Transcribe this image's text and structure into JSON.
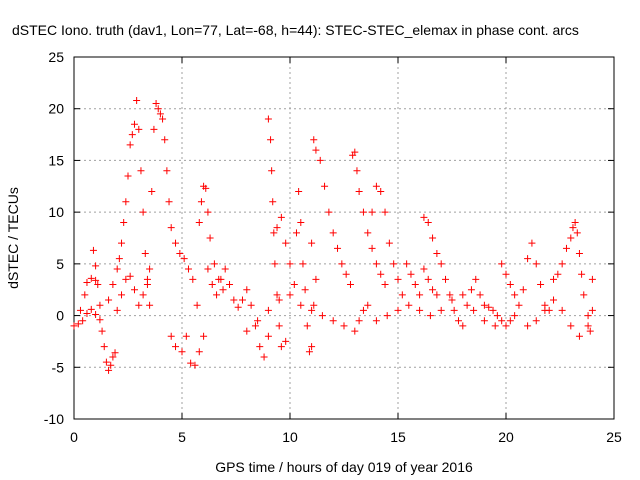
{
  "chart_data": {
    "type": "scatter",
    "title": "dSTEC Iono. truth (dav1, Lon=77, Lat=-68, h=44): STEC-STEC_elemax in phase cont. arcs",
    "xlabel": "GPS time / hours of day 019 of year 2016",
    "ylabel": "dSTEC  / TECUs",
    "xlim": [
      0,
      25
    ],
    "ylim": [
      -10,
      25
    ],
    "xticks": [
      0,
      5,
      10,
      15,
      20,
      25
    ],
    "yticks": [
      -10,
      -5,
      0,
      5,
      10,
      15,
      20,
      25
    ],
    "grid": true,
    "marker": "+",
    "series_color": "#ff0000",
    "series": [
      {
        "values": [
          [
            0.0,
            -1.0
          ],
          [
            0.2,
            -0.8
          ],
          [
            0.4,
            -0.5
          ],
          [
            0.6,
            0.2
          ],
          [
            0.8,
            0.6
          ],
          [
            1.0,
            0.1
          ],
          [
            1.2,
            -0.4
          ],
          [
            0.3,
            0.5
          ],
          [
            0.5,
            2.0
          ],
          [
            0.6,
            3.2
          ],
          [
            0.8,
            3.6
          ],
          [
            1.0,
            3.4
          ],
          [
            0.9,
            6.3
          ],
          [
            1.0,
            4.8
          ],
          [
            1.1,
            3.0
          ],
          [
            1.2,
            1.0
          ],
          [
            1.3,
            -1.5
          ],
          [
            1.4,
            -3.0
          ],
          [
            1.5,
            -4.5
          ],
          [
            1.6,
            -5.3
          ],
          [
            1.7,
            -4.8
          ],
          [
            1.8,
            -4.0
          ],
          [
            1.9,
            -3.6
          ],
          [
            1.6,
            1.5
          ],
          [
            1.8,
            3.0
          ],
          [
            2.0,
            4.5
          ],
          [
            2.1,
            5.5
          ],
          [
            2.2,
            7.0
          ],
          [
            2.3,
            9.0
          ],
          [
            2.4,
            11.0
          ],
          [
            2.5,
            13.5
          ],
          [
            2.6,
            16.5
          ],
          [
            2.7,
            17.5
          ],
          [
            2.8,
            18.5
          ],
          [
            2.9,
            20.8
          ],
          [
            3.0,
            18.0
          ],
          [
            3.1,
            14.0
          ],
          [
            3.2,
            10.0
          ],
          [
            3.3,
            6.0
          ],
          [
            3.4,
            3.0
          ],
          [
            3.5,
            1.0
          ],
          [
            2.0,
            0.5
          ],
          [
            2.2,
            2.0
          ],
          [
            2.4,
            3.5
          ],
          [
            2.6,
            3.8
          ],
          [
            2.8,
            2.5
          ],
          [
            3.0,
            1.0
          ],
          [
            3.2,
            2.0
          ],
          [
            3.4,
            3.5
          ],
          [
            3.5,
            4.5
          ],
          [
            3.6,
            12.0
          ],
          [
            3.7,
            18.0
          ],
          [
            3.8,
            20.5
          ],
          [
            3.9,
            20.0
          ],
          [
            4.0,
            19.5
          ],
          [
            4.1,
            19.0
          ],
          [
            4.2,
            17.0
          ],
          [
            4.3,
            14.0
          ],
          [
            4.4,
            11.0
          ],
          [
            4.5,
            8.5
          ],
          [
            4.7,
            7.0
          ],
          [
            4.9,
            6.0
          ],
          [
            5.1,
            5.5
          ],
          [
            5.3,
            4.5
          ],
          [
            5.5,
            3.5
          ],
          [
            5.7,
            1.0
          ],
          [
            4.5,
            -2.0
          ],
          [
            4.7,
            -3.0
          ],
          [
            5.0,
            -3.5
          ],
          [
            5.2,
            -2.0
          ],
          [
            5.4,
            -4.6
          ],
          [
            5.6,
            -4.8
          ],
          [
            5.8,
            -3.5
          ],
          [
            6.0,
            -2.0
          ],
          [
            5.8,
            9.0
          ],
          [
            5.9,
            11.0
          ],
          [
            6.0,
            12.5
          ],
          [
            6.1,
            12.3
          ],
          [
            6.2,
            10.0
          ],
          [
            6.3,
            7.5
          ],
          [
            6.5,
            5.0
          ],
          [
            6.7,
            3.5
          ],
          [
            6.9,
            2.5
          ],
          [
            6.2,
            4.5
          ],
          [
            6.4,
            3.0
          ],
          [
            6.6,
            2.0
          ],
          [
            6.8,
            3.5
          ],
          [
            7.0,
            4.5
          ],
          [
            7.2,
            3.0
          ],
          [
            7.4,
            1.5
          ],
          [
            7.6,
            0.8
          ],
          [
            7.8,
            1.5
          ],
          [
            8.0,
            2.5
          ],
          [
            8.2,
            1.0
          ],
          [
            8.4,
            -1.0
          ],
          [
            8.6,
            -3.0
          ],
          [
            8.8,
            -4.0
          ],
          [
            9.0,
            -2.0
          ],
          [
            9.0,
            19.0
          ],
          [
            9.1,
            17.0
          ],
          [
            9.15,
            14.0
          ],
          [
            9.2,
            11.0
          ],
          [
            9.25,
            8.0
          ],
          [
            9.3,
            5.0
          ],
          [
            9.4,
            2.0
          ],
          [
            9.5,
            -1.0
          ],
          [
            9.6,
            -3.0
          ],
          [
            9.8,
            -2.5
          ],
          [
            9.4,
            8.5
          ],
          [
            9.6,
            9.5
          ],
          [
            9.8,
            7.0
          ],
          [
            10.0,
            5.0
          ],
          [
            10.2,
            3.0
          ],
          [
            10.3,
            8.0
          ],
          [
            10.4,
            12.0
          ],
          [
            10.5,
            9.0
          ],
          [
            10.6,
            5.0
          ],
          [
            10.7,
            2.5
          ],
          [
            10.8,
            -1.0
          ],
          [
            10.9,
            -3.5
          ],
          [
            11.0,
            -3.0
          ],
          [
            11.1,
            1.0
          ],
          [
            11.2,
            3.5
          ],
          [
            11.0,
            7.0
          ],
          [
            11.1,
            17.0
          ],
          [
            11.2,
            16.0
          ],
          [
            11.4,
            15.0
          ],
          [
            11.6,
            12.5
          ],
          [
            11.8,
            10.0
          ],
          [
            12.0,
            8.0
          ],
          [
            12.2,
            6.5
          ],
          [
            12.4,
            5.0
          ],
          [
            12.6,
            4.0
          ],
          [
            12.8,
            3.0
          ],
          [
            12.9,
            15.5
          ],
          [
            13.0,
            15.8
          ],
          [
            13.1,
            14.0
          ],
          [
            13.2,
            12.0
          ],
          [
            13.4,
            10.0
          ],
          [
            13.6,
            8.0
          ],
          [
            13.8,
            6.5
          ],
          [
            14.0,
            5.0
          ],
          [
            14.2,
            4.0
          ],
          [
            14.4,
            3.0
          ],
          [
            13.0,
            -1.5
          ],
          [
            13.2,
            -0.5
          ],
          [
            13.4,
            0.5
          ],
          [
            13.6,
            1.0
          ],
          [
            13.8,
            10.0
          ],
          [
            14.0,
            12.5
          ],
          [
            14.2,
            12.0
          ],
          [
            14.4,
            10.0
          ],
          [
            14.6,
            7.0
          ],
          [
            14.8,
            5.0
          ],
          [
            15.0,
            3.5
          ],
          [
            15.2,
            2.0
          ],
          [
            15.4,
            5.0
          ],
          [
            15.6,
            4.0
          ],
          [
            15.8,
            3.0
          ],
          [
            16.0,
            2.0
          ],
          [
            16.2,
            4.5
          ],
          [
            16.4,
            3.5
          ],
          [
            16.6,
            2.5
          ],
          [
            16.8,
            2.0
          ],
          [
            16.2,
            9.5
          ],
          [
            16.4,
            9.0
          ],
          [
            16.6,
            7.5
          ],
          [
            16.8,
            6.0
          ],
          [
            17.0,
            5.0
          ],
          [
            17.2,
            3.5
          ],
          [
            17.4,
            2.0
          ],
          [
            17.6,
            0.5
          ],
          [
            17.8,
            -0.5
          ],
          [
            18.0,
            -1.0
          ],
          [
            18.2,
            1.0
          ],
          [
            18.4,
            2.5
          ],
          [
            18.6,
            3.5
          ],
          [
            18.8,
            2.0
          ],
          [
            19.0,
            1.0
          ],
          [
            19.2,
            0.8
          ],
          [
            19.4,
            0.5
          ],
          [
            19.6,
            0.0
          ],
          [
            19.8,
            -0.5
          ],
          [
            20.0,
            -1.0
          ],
          [
            20.2,
            -0.5
          ],
          [
            20.4,
            0.0
          ],
          [
            19.8,
            5.0
          ],
          [
            20.0,
            4.0
          ],
          [
            20.2,
            3.0
          ],
          [
            20.4,
            2.0
          ],
          [
            20.6,
            1.0
          ],
          [
            20.8,
            2.5
          ],
          [
            21.0,
            5.5
          ],
          [
            21.2,
            7.0
          ],
          [
            21.4,
            5.0
          ],
          [
            21.6,
            3.0
          ],
          [
            21.8,
            1.0
          ],
          [
            22.0,
            0.5
          ],
          [
            22.2,
            3.5
          ],
          [
            22.4,
            4.0
          ],
          [
            22.6,
            5.0
          ],
          [
            22.8,
            6.5
          ],
          [
            23.0,
            7.5
          ],
          [
            23.1,
            8.5
          ],
          [
            23.2,
            9.0
          ],
          [
            23.3,
            8.0
          ],
          [
            23.4,
            6.0
          ],
          [
            23.5,
            4.0
          ],
          [
            23.6,
            2.0
          ],
          [
            23.8,
            0.0
          ],
          [
            21.0,
            -1.0
          ],
          [
            21.4,
            -0.5
          ],
          [
            21.8,
            0.5
          ],
          [
            22.2,
            1.5
          ],
          [
            22.6,
            0.5
          ],
          [
            23.0,
            -1.0
          ],
          [
            23.4,
            -2.0
          ],
          [
            23.8,
            -1.0
          ],
          [
            24.0,
            0.5
          ],
          [
            24.0,
            3.5
          ],
          [
            23.9,
            -1.5
          ],
          [
            14.0,
            -0.5
          ],
          [
            14.5,
            0.0
          ],
          [
            15.0,
            0.5
          ],
          [
            15.5,
            1.0
          ],
          [
            16.0,
            0.5
          ],
          [
            16.5,
            0.0
          ],
          [
            17.0,
            0.5
          ],
          [
            17.5,
            1.5
          ],
          [
            18.0,
            2.0
          ],
          [
            18.5,
            0.5
          ],
          [
            19.0,
            -0.5
          ],
          [
            19.5,
            -1.0
          ],
          [
            8.0,
            -1.5
          ],
          [
            8.5,
            -0.5
          ],
          [
            9.0,
            0.5
          ],
          [
            9.5,
            1.5
          ],
          [
            10.0,
            2.0
          ],
          [
            10.5,
            1.0
          ],
          [
            11.0,
            0.5
          ],
          [
            11.5,
            0.0
          ],
          [
            12.0,
            -0.5
          ],
          [
            12.5,
            -1.0
          ]
        ]
      }
    ]
  }
}
